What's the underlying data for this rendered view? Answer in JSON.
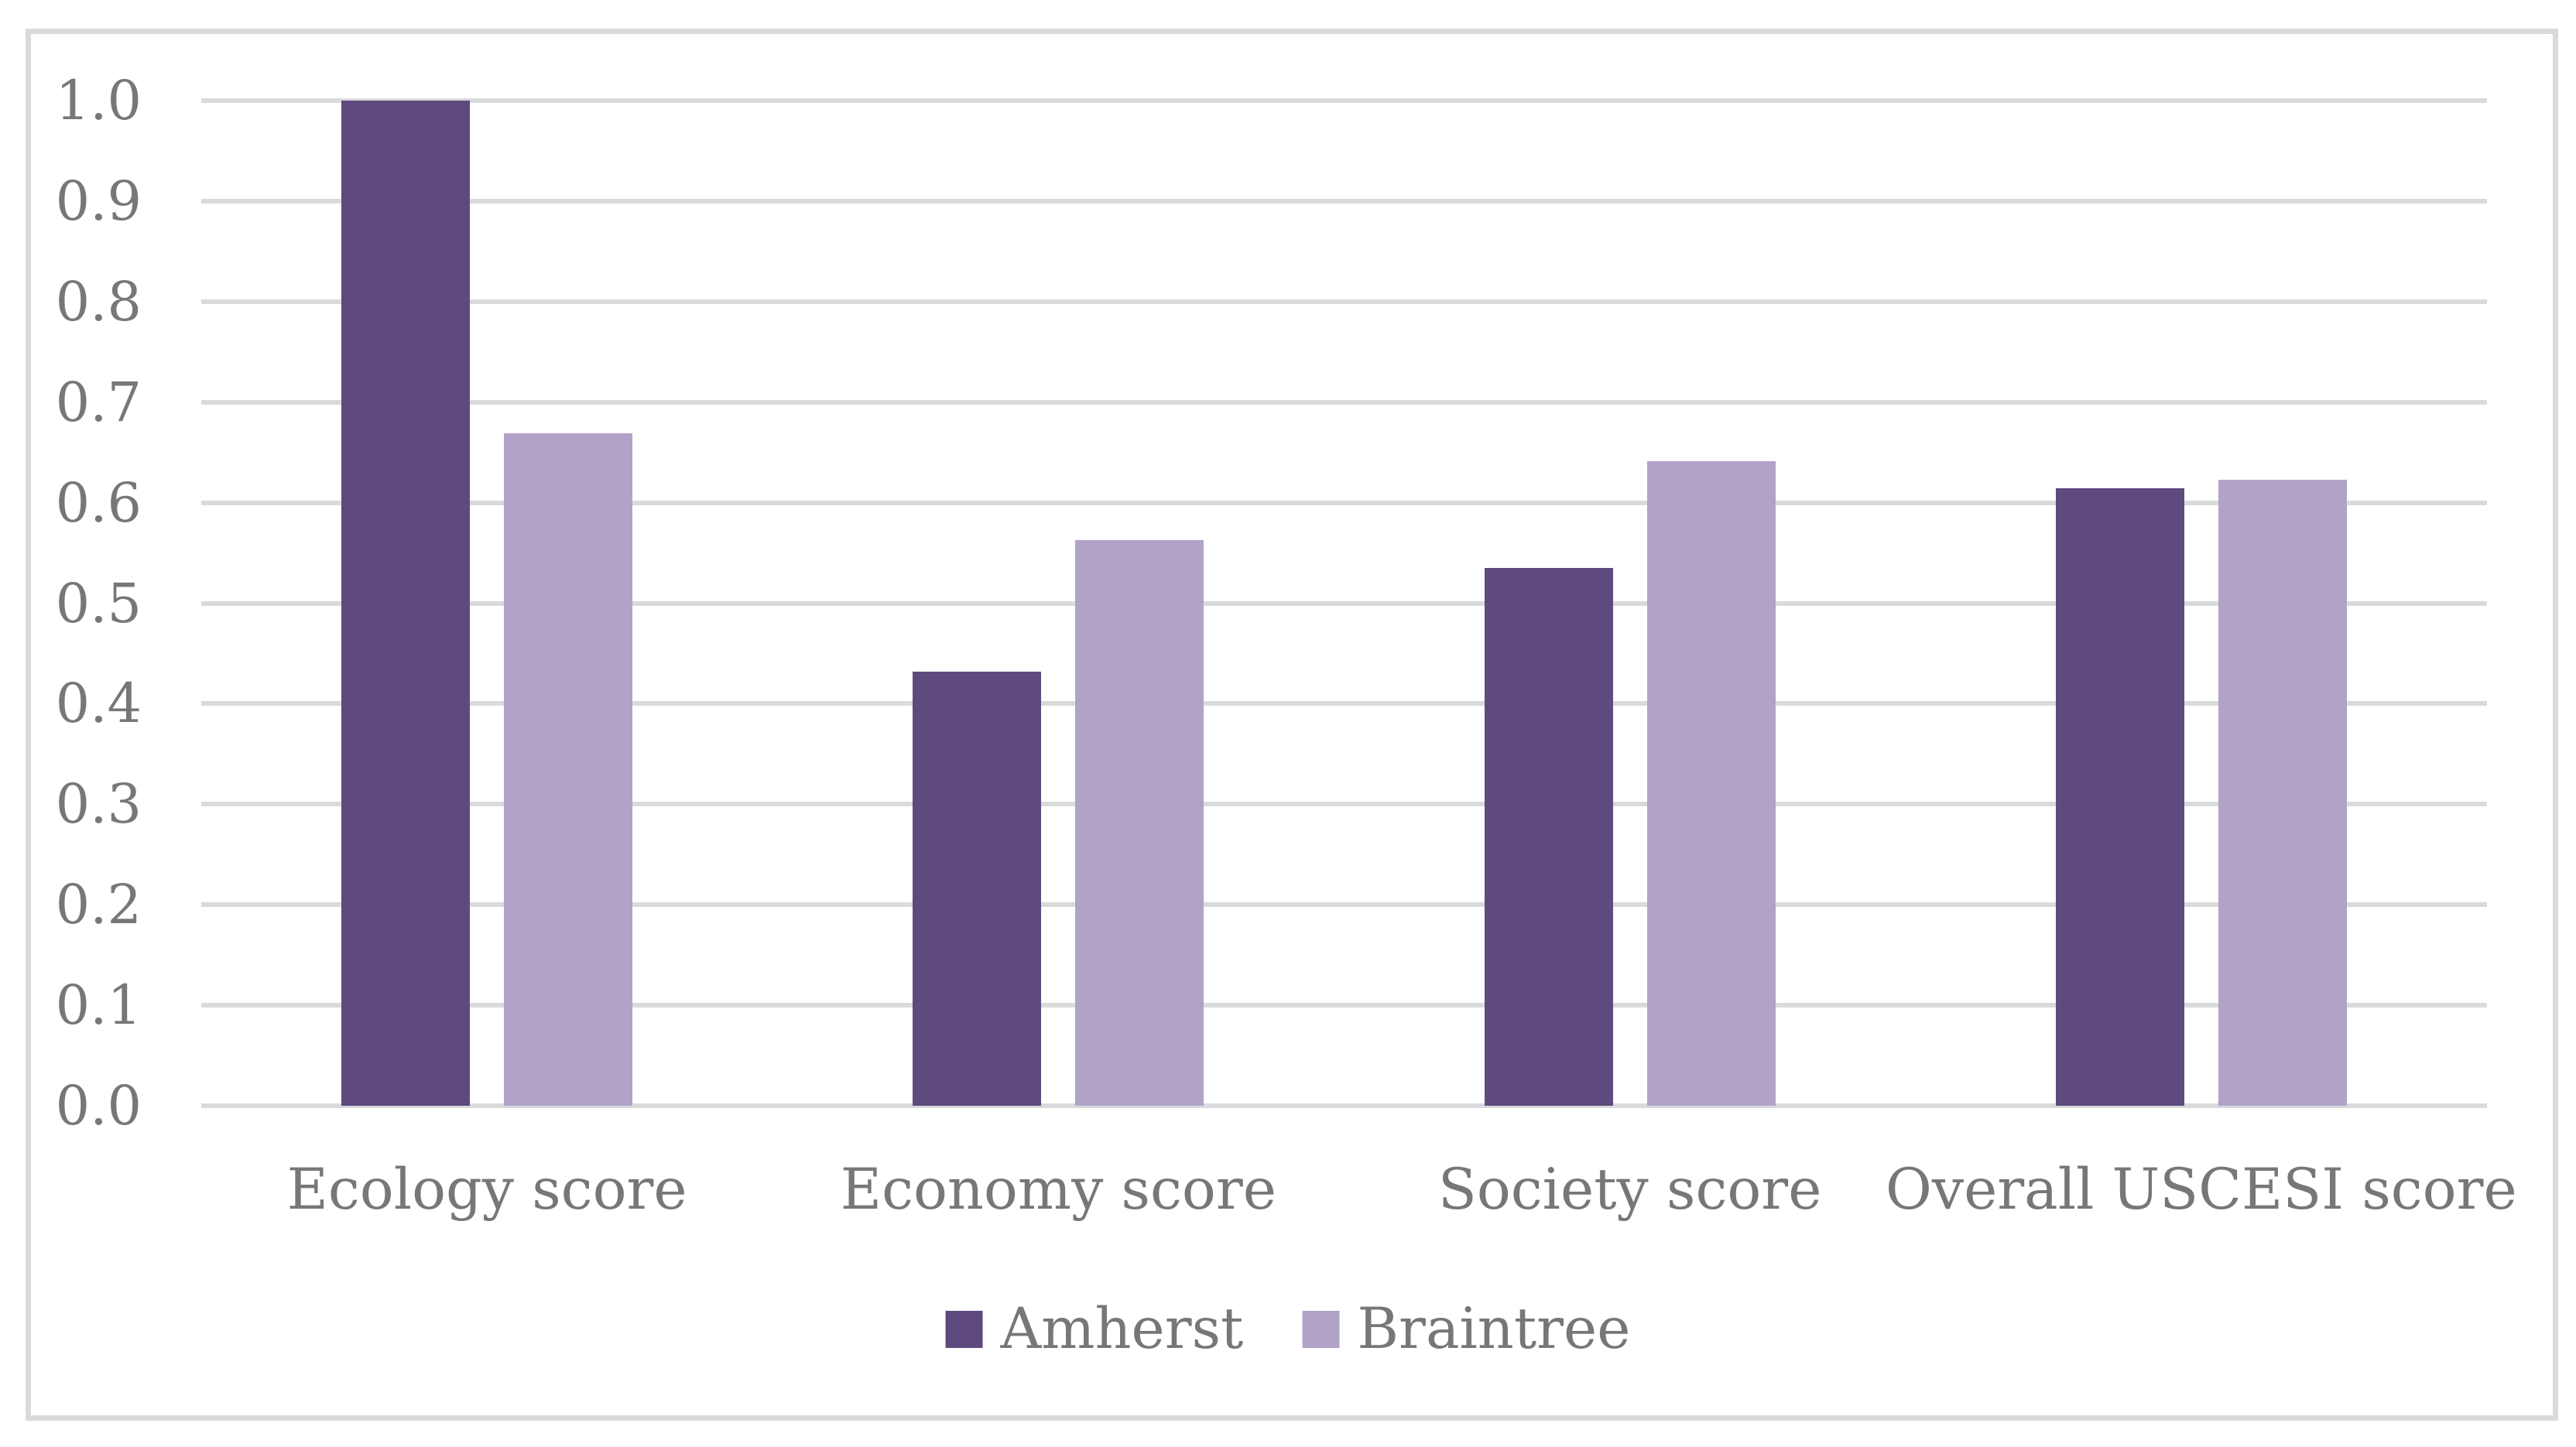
{
  "chart_data": {
    "type": "bar",
    "title": "",
    "xlabel": "",
    "ylabel": "",
    "categories": [
      "Ecology score",
      "Economy score",
      "Society score",
      "Overall USCESI score"
    ],
    "series": [
      {
        "name": "Amherst",
        "color": "#5E4A7E",
        "values": [
          1.0,
          0.432,
          0.535,
          0.614
        ]
      },
      {
        "name": "Braintree",
        "color": "#B1A2C8",
        "values": [
          0.669,
          0.563,
          0.641,
          0.623
        ]
      }
    ],
    "ylim": [
      0.0,
      1.0
    ],
    "ytick_step": 0.1,
    "ytick_decimals": 1,
    "ytick_labels": [
      "0.0",
      "0.1",
      "0.2",
      "0.3",
      "0.4",
      "0.5",
      "0.6",
      "0.7",
      "0.8",
      "0.9",
      "1.0"
    ],
    "grid": true,
    "gridline_color": "#D9DADB",
    "frame_color": "#D9DADB",
    "text_color": "#767779",
    "background_color": "#FFFFFF",
    "legend_position": "bottom",
    "legend_items": [
      "Amherst",
      "Braintree"
    ]
  }
}
